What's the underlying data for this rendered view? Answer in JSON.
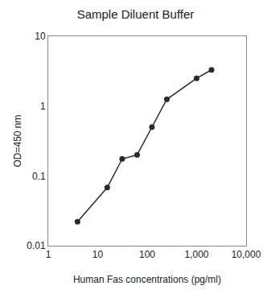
{
  "chart_data": {
    "type": "line",
    "title": "Sample Diluent Buffer",
    "xlabel": "Human Fas concentrations (pg/ml)",
    "ylabel": "OD=450 nm",
    "x": [
      3.9,
      15.6,
      31.25,
      62.5,
      125,
      250,
      1000,
      2000
    ],
    "values": [
      0.022,
      0.068,
      0.175,
      0.2,
      0.5,
      1.25,
      2.5,
      3.3
    ],
    "color": "#2a2a2a",
    "marker": "circle",
    "log": true,
    "grid": false,
    "xlim": [
      1,
      10000
    ],
    "xticks": [
      1,
      10,
      100,
      {
        "value": 1000,
        "label": "1,000"
      },
      {
        "value": 10000,
        "label": "10,000"
      }
    ],
    "ylim": [
      0.01,
      10
    ],
    "yticks": [
      0.01,
      0.1,
      1,
      10
    ]
  }
}
